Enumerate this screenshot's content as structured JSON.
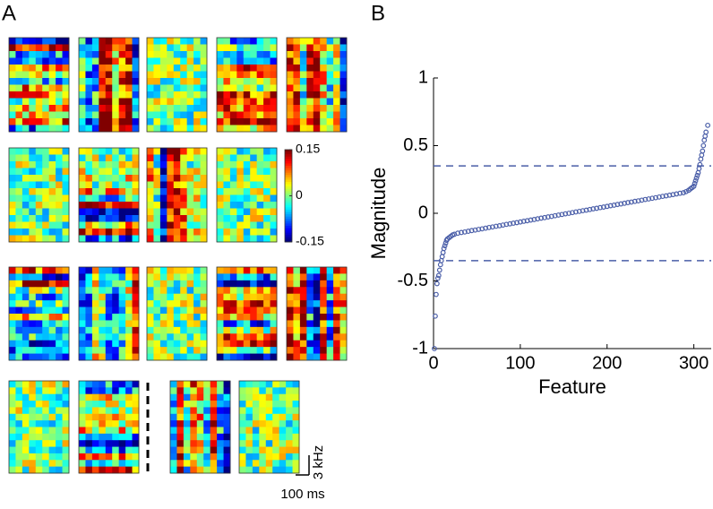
{
  "panel_a": {
    "label": "A",
    "colorbar": {
      "ticks": [
        0.15,
        0,
        -0.15
      ]
    },
    "scale_bars": {
      "frequency": "3 kHz",
      "time": "100 ms"
    }
  },
  "chart_data": {
    "type": "scatter",
    "panel_label": "B",
    "xlabel": "Feature",
    "ylabel": "Magnitude",
    "color": "#4a5ea8",
    "x": [
      1,
      2,
      3,
      4,
      5,
      6,
      7,
      8,
      9,
      10,
      11,
      12,
      13,
      14,
      15,
      16,
      18,
      20,
      22,
      24,
      28,
      32,
      36,
      40,
      44,
      48,
      52,
      56,
      60,
      64,
      68,
      72,
      76,
      80,
      84,
      88,
      92,
      96,
      100,
      104,
      108,
      112,
      116,
      120,
      124,
      128,
      132,
      136,
      140,
      144,
      148,
      152,
      156,
      160,
      164,
      168,
      172,
      176,
      180,
      184,
      188,
      192,
      196,
      200,
      204,
      208,
      212,
      216,
      220,
      224,
      228,
      232,
      236,
      240,
      244,
      248,
      252,
      256,
      260,
      264,
      268,
      272,
      276,
      280,
      284,
      288,
      291,
      294,
      296,
      298,
      300,
      301,
      302,
      303,
      304,
      305,
      306,
      307,
      308,
      309,
      310,
      311,
      312,
      313,
      314,
      316
    ],
    "values": [
      -1,
      -0.76,
      -0.6,
      -0.52,
      -0.48,
      -0.46,
      -0.42,
      -0.38,
      -0.35,
      -0.32,
      -0.29,
      -0.26,
      -0.24,
      -0.22,
      -0.2,
      -0.19,
      -0.18,
      -0.17,
      -0.16,
      -0.155,
      -0.147,
      -0.142,
      -0.138,
      -0.133,
      -0.128,
      -0.124,
      -0.119,
      -0.115,
      -0.11,
      -0.105,
      -0.101,
      -0.096,
      -0.092,
      -0.087,
      -0.082,
      -0.078,
      -0.073,
      -0.069,
      -0.064,
      -0.059,
      -0.055,
      -0.05,
      -0.046,
      -0.041,
      -0.036,
      -0.032,
      -0.027,
      -0.023,
      -0.018,
      -0.013,
      -0.009,
      -0.004,
      0,
      0.005,
      0.01,
      0.014,
      0.019,
      0.023,
      0.028,
      0.033,
      0.037,
      0.042,
      0.046,
      0.051,
      0.056,
      0.06,
      0.065,
      0.069,
      0.074,
      0.079,
      0.083,
      0.088,
      0.092,
      0.097,
      0.102,
      0.106,
      0.111,
      0.115,
      0.12,
      0.125,
      0.129,
      0.134,
      0.138,
      0.143,
      0.148,
      0.152,
      0.16,
      0.17,
      0.18,
      0.19,
      0.2,
      0.22,
      0.24,
      0.26,
      0.28,
      0.3,
      0.33,
      0.36,
      0.4,
      0.43,
      0.46,
      0.5,
      0.54,
      0.57,
      0.6,
      0.65
    ],
    "reference_lines": [
      0.35,
      -0.35
    ],
    "xlim": [
      0,
      320
    ],
    "ylim": [
      -1,
      1
    ],
    "xticks": [
      0,
      100,
      200,
      300
    ],
    "yticks": [
      -1,
      -0.5,
      0,
      0.5,
      1
    ]
  }
}
